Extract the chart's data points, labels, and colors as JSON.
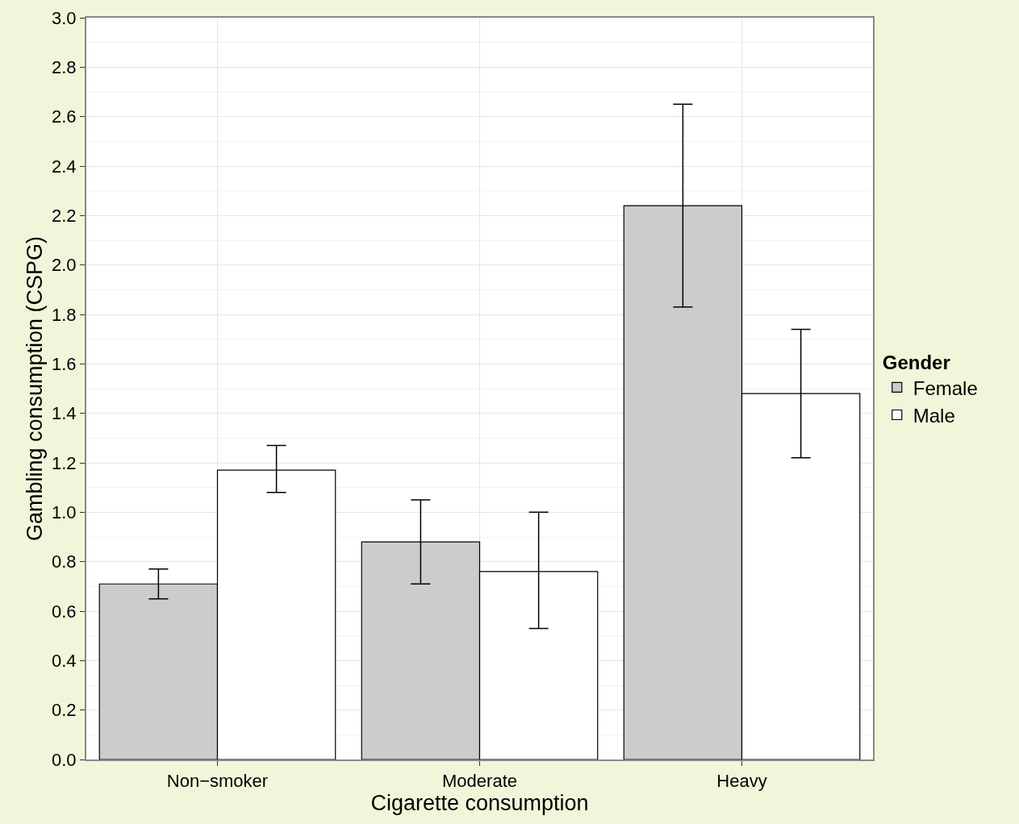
{
  "chart_data": {
    "type": "bar",
    "xlabel": "Cigarette consumption",
    "ylabel": "Gambling consumption (CSPG)",
    "legend_title": "Gender",
    "categories": [
      "Non−smoker",
      "Moderate",
      "Heavy"
    ],
    "series": [
      {
        "name": "Female",
        "color": "#cccccc",
        "values": [
          0.71,
          0.88,
          2.24
        ],
        "errors": [
          [
            0.65,
            0.77
          ],
          [
            0.71,
            1.05
          ],
          [
            1.83,
            2.65
          ]
        ]
      },
      {
        "name": "Male",
        "color": "#ffffff",
        "values": [
          1.17,
          0.76,
          1.48
        ],
        "errors": [
          [
            1.08,
            1.27
          ],
          [
            0.53,
            1.0
          ],
          [
            1.22,
            1.74
          ]
        ]
      }
    ],
    "ylim": [
      0,
      3
    ],
    "yticks": [
      {
        "value": 0,
        "label": "0.0"
      },
      {
        "value": 0.2,
        "label": "0.2"
      },
      {
        "value": 0.4,
        "label": "0.4"
      },
      {
        "value": 0.6,
        "label": "0.6"
      },
      {
        "value": 0.8,
        "label": "0.8"
      },
      {
        "value": 1,
        "label": "1.0"
      },
      {
        "value": 1.2,
        "label": "1.2"
      },
      {
        "value": 1.4,
        "label": "1.4"
      },
      {
        "value": 1.6,
        "label": "1.6"
      },
      {
        "value": 1.8,
        "label": "1.8"
      },
      {
        "value": 2,
        "label": "2.0"
      },
      {
        "value": 2.2,
        "label": "2.2"
      },
      {
        "value": 2.4,
        "label": "2.4"
      },
      {
        "value": 2.6,
        "label": "2.6"
      },
      {
        "value": 2.8,
        "label": "2.8"
      },
      {
        "value": 3,
        "label": "3.0"
      }
    ],
    "grid": true,
    "legend": "right"
  }
}
